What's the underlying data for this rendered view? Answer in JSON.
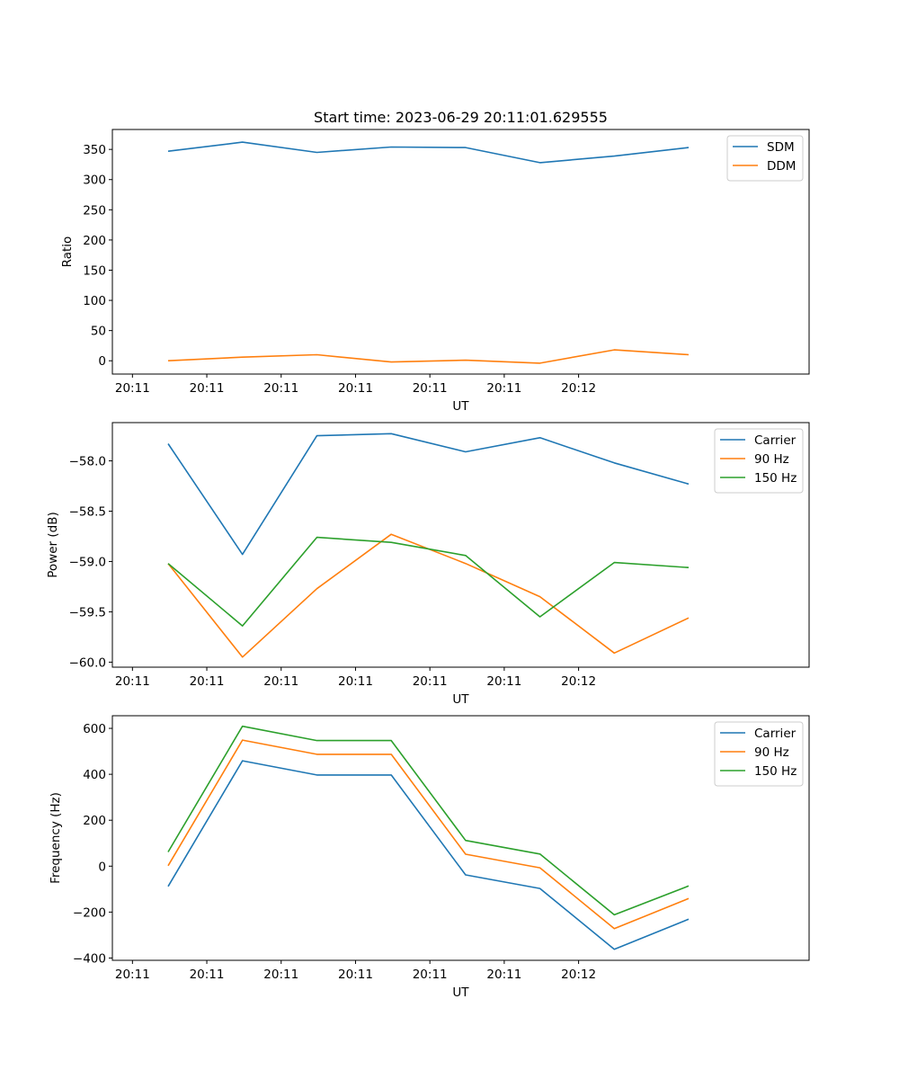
{
  "figure_title": "Start time: 2023-06-29 20:11:01.629555",
  "colors": {
    "blue": "#1f77b4",
    "orange": "#ff7f0e",
    "green": "#2ca02c"
  },
  "chart_data": [
    {
      "type": "line",
      "title": "Start time: 2023-06-29 20:11:01.629555",
      "xlabel": "UT",
      "ylabel": "Ratio",
      "x_tick_labels": [
        "20:11",
        "20:11",
        "20:11",
        "20:11",
        "20:11",
        "20:11",
        "20:12"
      ],
      "y_ticks": [
        0,
        50,
        100,
        150,
        200,
        250,
        300,
        350
      ],
      "ylim": [
        -22,
        383
      ],
      "xlim": [
        -0.27,
        9.1
      ],
      "legend": "top-right",
      "grid": false,
      "series": [
        {
          "name": "SDM",
          "color": "#1f77b4",
          "x": [
            0.48,
            1.48,
            2.48,
            3.48,
            4.48,
            5.48,
            6.48,
            7.48
          ],
          "values": [
            347,
            362,
            345,
            354,
            353,
            328,
            339,
            353
          ]
        },
        {
          "name": "DDM",
          "color": "#ff7f0e",
          "x": [
            0.48,
            1.48,
            2.48,
            3.48,
            4.48,
            5.48,
            6.48,
            7.48
          ],
          "values": [
            0,
            6,
            10,
            -2,
            1,
            -4,
            18,
            10
          ]
        }
      ]
    },
    {
      "type": "line",
      "title": "",
      "xlabel": "UT",
      "ylabel": "Power (dB)",
      "x_tick_labels": [
        "20:11",
        "20:11",
        "20:11",
        "20:11",
        "20:11",
        "20:11",
        "20:12"
      ],
      "y_ticks": [
        -60.0,
        -59.5,
        -59.0,
        -58.5,
        -58.0
      ],
      "y_tick_labels": [
        "−60.0",
        "−59.5",
        "−59.0",
        "−58.5",
        "−58.0"
      ],
      "ylim": [
        -60.05,
        -57.62
      ],
      "xlim": [
        -0.27,
        9.1
      ],
      "legend": "top-right",
      "grid": false,
      "series": [
        {
          "name": "Carrier",
          "color": "#1f77b4",
          "x": [
            0.48,
            1.48,
            2.48,
            3.48,
            4.48,
            5.48,
            6.48,
            7.48
          ],
          "values": [
            -57.83,
            -58.93,
            -57.75,
            -57.73,
            -57.91,
            -57.77,
            -58.02,
            -58.23
          ]
        },
        {
          "name": "90 Hz",
          "color": "#ff7f0e",
          "x": [
            0.48,
            1.48,
            2.48,
            3.48,
            4.48,
            5.48,
            6.48,
            7.48
          ],
          "values": [
            -59.02,
            -59.95,
            -59.27,
            -58.73,
            -59.02,
            -59.35,
            -59.91,
            -59.56
          ]
        },
        {
          "name": "150 Hz",
          "color": "#2ca02c",
          "x": [
            0.48,
            1.48,
            2.48,
            3.48,
            4.48,
            5.48,
            6.48,
            7.48
          ],
          "values": [
            -59.02,
            -59.64,
            -58.76,
            -58.81,
            -58.94,
            -59.55,
            -59.01,
            -59.06
          ]
        }
      ]
    },
    {
      "type": "line",
      "title": "",
      "xlabel": "UT",
      "ylabel": "Frequency (Hz)",
      "x_tick_labels": [
        "20:11",
        "20:11",
        "20:11",
        "20:11",
        "20:11",
        "20:11",
        "20:12"
      ],
      "y_ticks": [
        -400,
        -200,
        0,
        200,
        400,
        600
      ],
      "y_tick_labels": [
        "−400",
        "−200",
        "0",
        "200",
        "400",
        "600"
      ],
      "ylim": [
        -410,
        655
      ],
      "xlim": [
        -0.27,
        9.1
      ],
      "legend": "top-right",
      "grid": false,
      "series": [
        {
          "name": "Carrier",
          "color": "#1f77b4",
          "x": [
            0.48,
            1.48,
            2.48,
            3.48,
            4.48,
            5.48,
            6.48,
            7.48
          ],
          "values": [
            -88,
            459,
            397,
            397,
            -38,
            -97,
            -362,
            -231
          ]
        },
        {
          "name": "90 Hz",
          "color": "#ff7f0e",
          "x": [
            0.48,
            1.48,
            2.48,
            3.48,
            4.48,
            5.48,
            6.48,
            7.48
          ],
          "values": [
            2,
            549,
            487,
            487,
            52,
            -7,
            -272,
            -141
          ]
        },
        {
          "name": "150 Hz",
          "color": "#2ca02c",
          "x": [
            0.48,
            1.48,
            2.48,
            3.48,
            4.48,
            5.48,
            6.48,
            7.48
          ],
          "values": [
            62,
            609,
            547,
            547,
            112,
            53,
            -212,
            -86
          ]
        }
      ]
    }
  ]
}
